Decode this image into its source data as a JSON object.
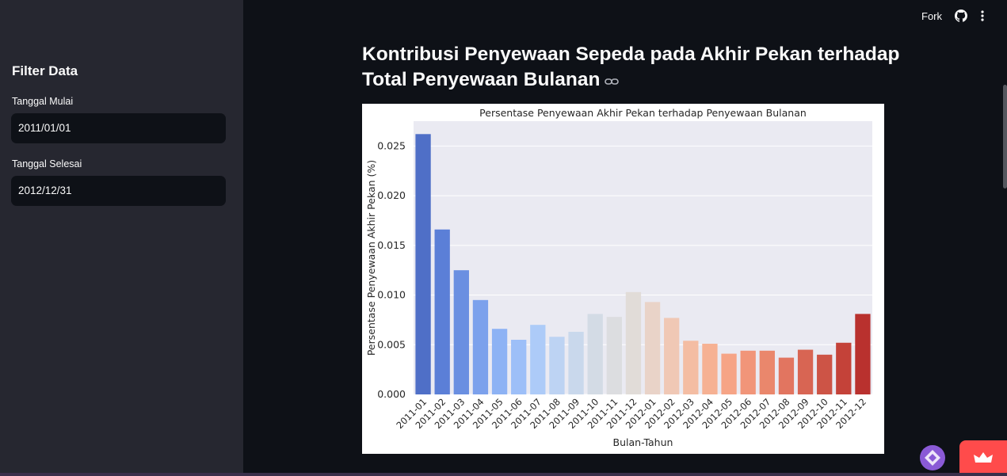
{
  "sidebar": {
    "title": "Filter Data",
    "start_label": "Tanggal Mulai",
    "start_value": "2011/01/01",
    "end_label": "Tanggal Selesai",
    "end_value": "2012/12/31"
  },
  "toolbar": {
    "fork_label": "Fork",
    "icons": [
      "github-icon",
      "more-vertical-icon"
    ]
  },
  "main": {
    "title": "Kontribusi Penyewaan Sepeda pada Akhir Pekan terhadap Total Penyewaan Bulanan"
  },
  "colors": {
    "app_bg": "#0e1117",
    "sidebar_bg": "#262730",
    "accent": "#ff4b4b",
    "plot_bg": "#eaeaf2"
  },
  "chart_data": {
    "type": "bar",
    "title": "Persentase Penyewaan Akhir Pekan terhadap Penyewaan Bulanan",
    "xlabel": "Bulan-Tahun",
    "ylabel": "Persentase Penyewaan Akhir Pekan (%)",
    "ylim": [
      0,
      0.0275
    ],
    "yticks": [
      "0.000",
      "0.005",
      "0.010",
      "0.015",
      "0.020",
      "0.025"
    ],
    "grid": true,
    "categories": [
      "2011-01",
      "2011-02",
      "2011-03",
      "2011-04",
      "2011-05",
      "2011-06",
      "2011-07",
      "2011-08",
      "2011-09",
      "2011-10",
      "2011-11",
      "2011-12",
      "2012-01",
      "2012-02",
      "2012-03",
      "2012-04",
      "2012-05",
      "2012-06",
      "2012-07",
      "2012-08",
      "2012-09",
      "2012-10",
      "2012-11",
      "2012-12"
    ],
    "values": [
      0.0262,
      0.0166,
      0.0125,
      0.0095,
      0.0066,
      0.0055,
      0.007,
      0.0058,
      0.0063,
      0.0081,
      0.0078,
      0.0103,
      0.0093,
      0.0077,
      0.0054,
      0.0051,
      0.0041,
      0.0044,
      0.0044,
      0.0037,
      0.0045,
      0.004,
      0.0052,
      0.0081
    ],
    "colors": [
      "#4f6fc7",
      "#5b7fd7",
      "#6a8fe1",
      "#7ca1ec",
      "#8db2f4",
      "#9dbff8",
      "#adcbf8",
      "#bdd3f3",
      "#c9d8ec",
      "#d3dbe5",
      "#dcdde0",
      "#e1dcd8",
      "#e9d3c8",
      "#f0c8b5",
      "#f4bda3",
      "#f6b193",
      "#f6a486",
      "#f19579",
      "#ea876c",
      "#e27560",
      "#d86553",
      "#cd5446",
      "#c44239",
      "#b9312e"
    ]
  }
}
